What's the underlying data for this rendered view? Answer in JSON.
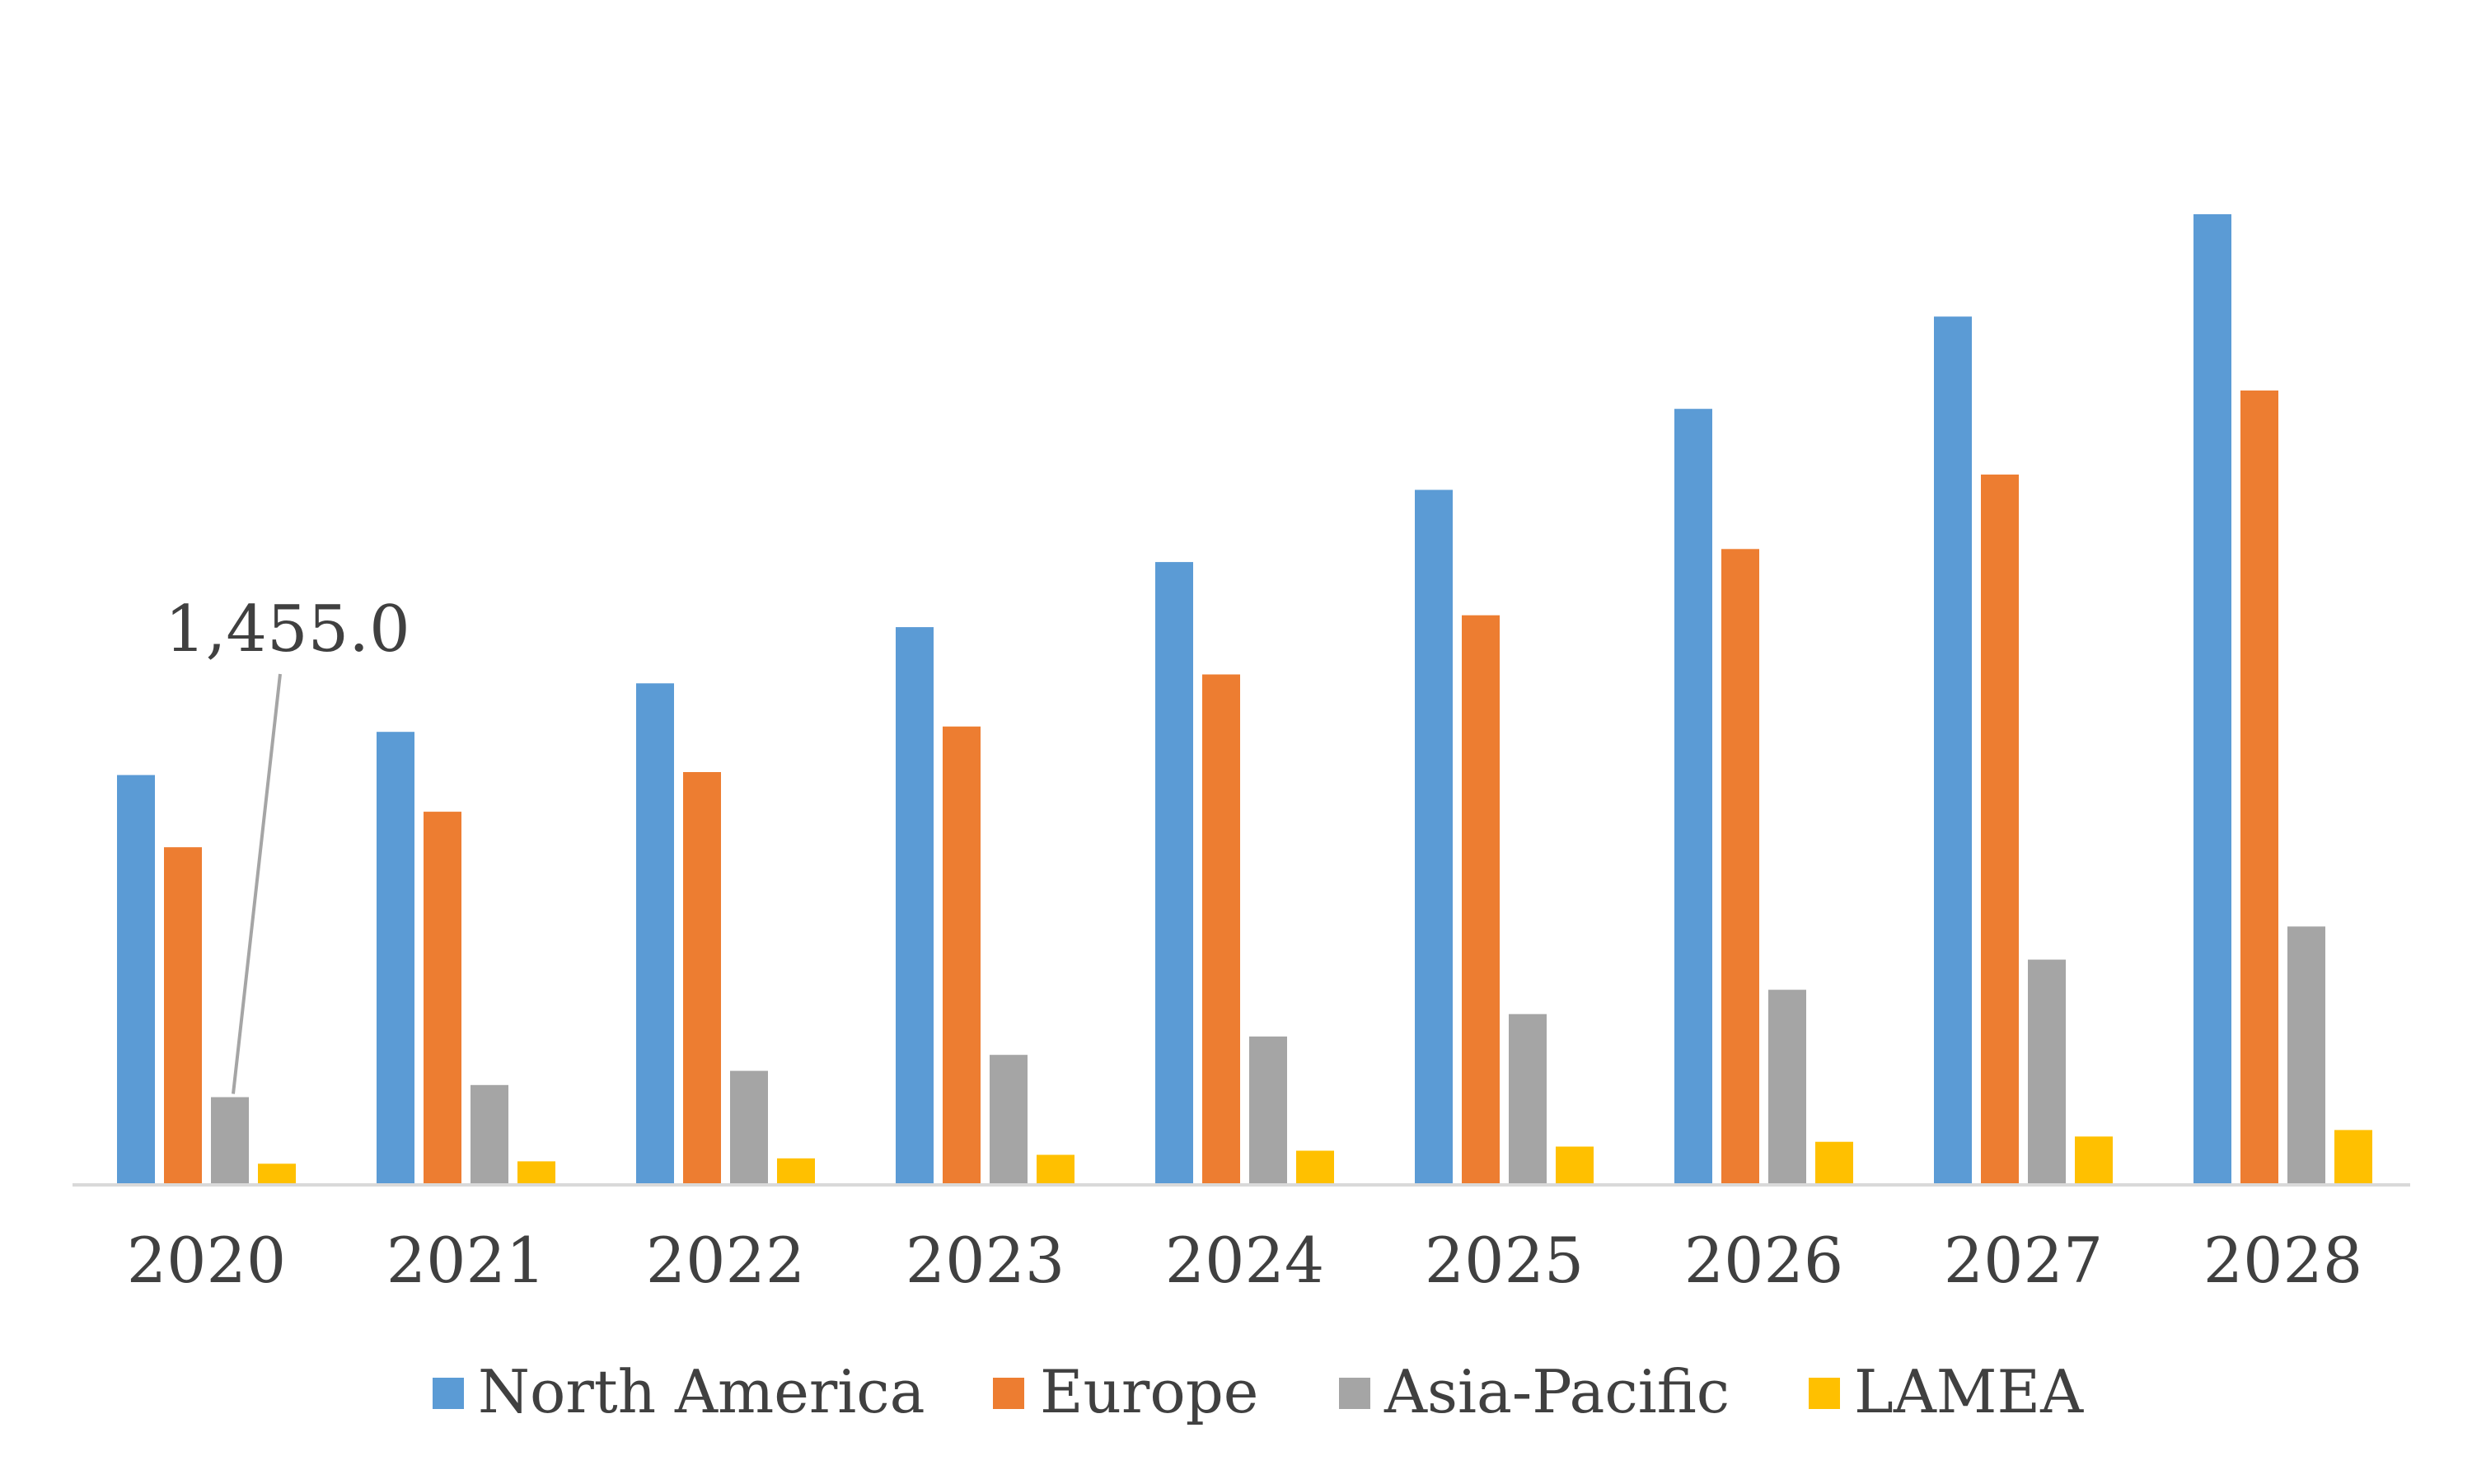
{
  "chart_data": {
    "type": "bar",
    "title": "",
    "xlabel": "",
    "ylabel": "",
    "categories": [
      "2020",
      "2021",
      "2022",
      "2023",
      "2024",
      "2025",
      "2026",
      "2027",
      "2028"
    ],
    "series": [
      {
        "name": "North America",
        "color": "#5B9BD5",
        "values": [
          6900,
          7630,
          8450,
          9400,
          10500,
          11720,
          13090,
          14650,
          16380
        ]
      },
      {
        "name": "Europe",
        "color": "#ED7D31",
        "values": [
          5680,
          6280,
          6950,
          7720,
          8600,
          9600,
          10720,
          11980,
          13400
        ]
      },
      {
        "name": "Asia-Pacific",
        "color": "#A5A5A5",
        "values": [
          1455,
          1660,
          1900,
          2170,
          2480,
          2860,
          3270,
          3780,
          4340
        ]
      },
      {
        "name": "LAMEA",
        "color": "#FFC000",
        "values": [
          330,
          370,
          420,
          480,
          550,
          620,
          700,
          790,
          900
        ]
      }
    ],
    "ylim": [
      0,
      17800
    ],
    "grid": false,
    "legend_position": "bottom",
    "annotations": [
      {
        "text": "1,455.0",
        "series": "Asia-Pacific",
        "category": "2020"
      }
    ]
  }
}
